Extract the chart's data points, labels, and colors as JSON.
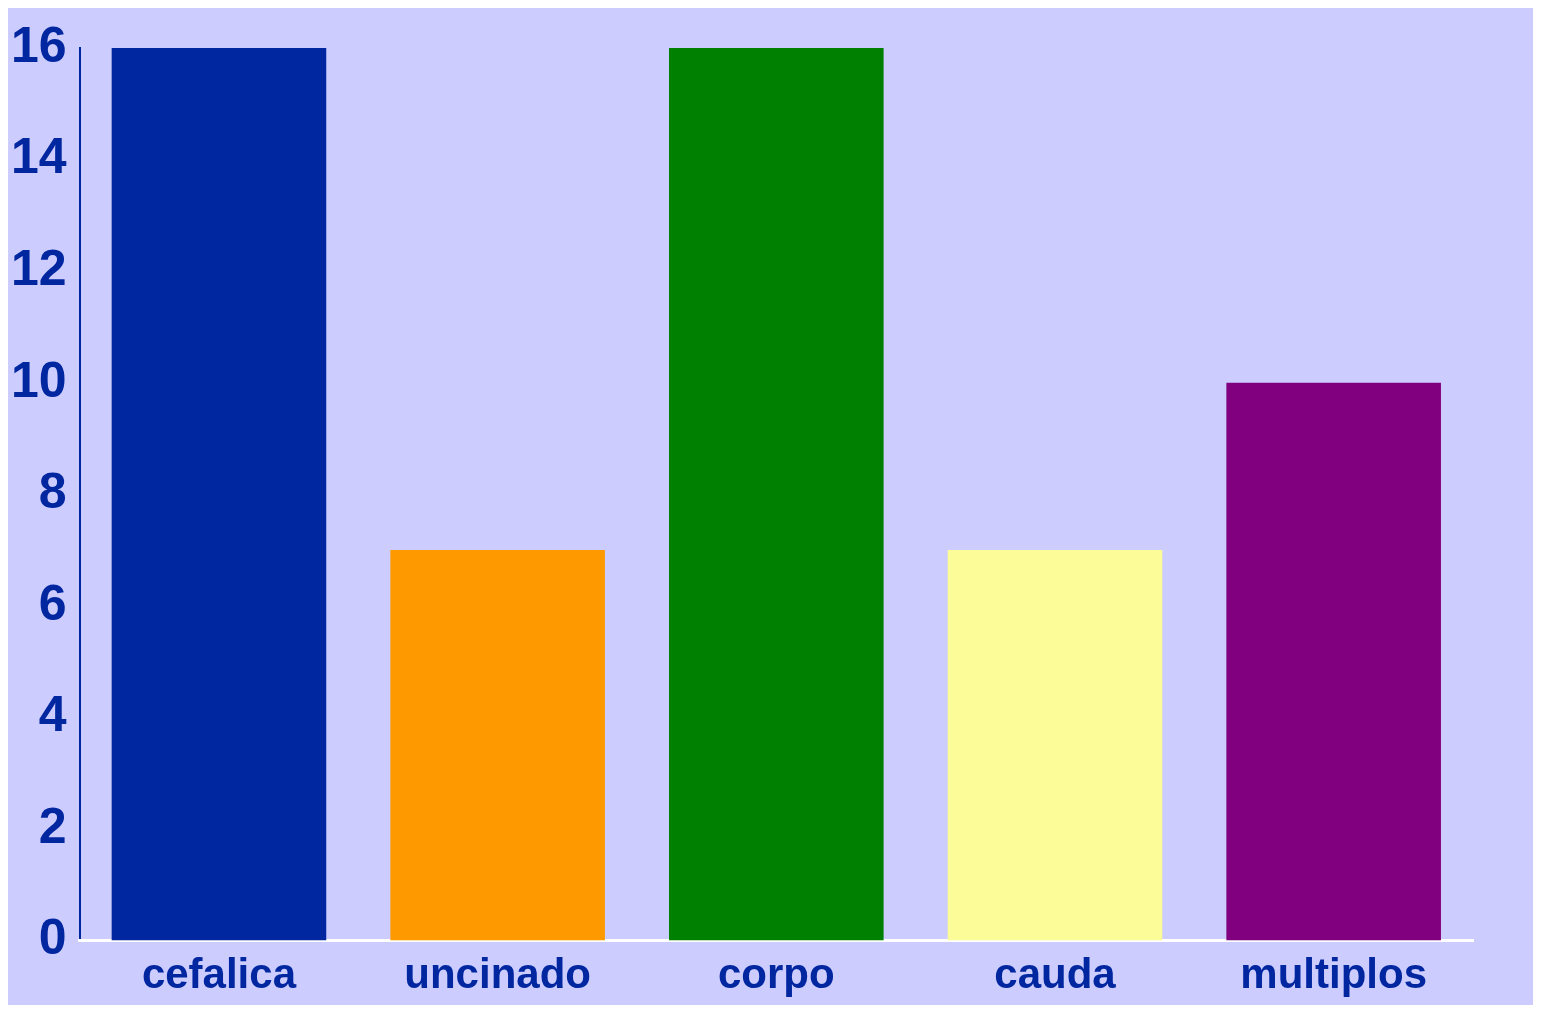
{
  "chart_data": {
    "type": "bar",
    "categories": [
      "cefalica",
      "uncinado",
      "corpo",
      "cauda",
      "multiplos"
    ],
    "values": [
      16,
      7,
      16,
      7,
      10
    ],
    "colors": [
      "#0026a0",
      "#ff9900",
      "#008000",
      "#fcfc99",
      "#800080"
    ],
    "ylim": [
      0,
      16
    ],
    "yticks": [
      0,
      2,
      4,
      6,
      8,
      10,
      12,
      14,
      16
    ],
    "grid": false,
    "legend": false
  }
}
